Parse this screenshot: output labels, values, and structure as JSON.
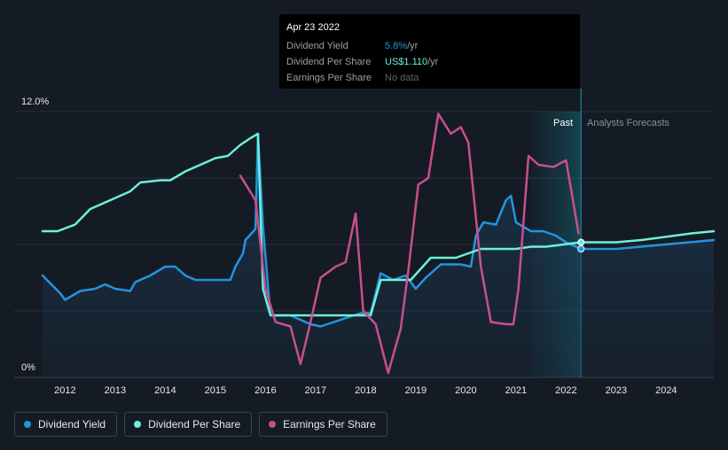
{
  "tooltip": {
    "date": "Apr 23 2022",
    "rows": [
      {
        "label": "Dividend Yield",
        "value": "5.8%",
        "unit": " /yr"
      },
      {
        "label": "Dividend Per Share",
        "value": "US$1.110",
        "unit": " /yr"
      },
      {
        "label": "Earnings Per Share",
        "value": "No data",
        "unit": ""
      }
    ]
  },
  "regions": {
    "past_label": "Past",
    "forecast_label": "Analysts Forecasts"
  },
  "legend": [
    {
      "label": "Dividend Yield",
      "color": "#2394df"
    },
    {
      "label": "Dividend Per Share",
      "color": "#6cf1d9"
    },
    {
      "label": "Earnings Per Share",
      "color": "#c94f8d"
    }
  ],
  "chart_data": {
    "type": "line",
    "title": "",
    "xlabel": "",
    "ylabel": "",
    "xlim": [
      2011.55,
      2024.95
    ],
    "ylim": [
      0,
      12
    ],
    "y_ticks": [
      {
        "value": 12,
        "label": "12.0%"
      },
      {
        "value": 0,
        "label": "0%"
      }
    ],
    "x_ticks": [
      2012,
      2013,
      2014,
      2015,
      2016,
      2017,
      2018,
      2019,
      2020,
      2021,
      2022,
      2023,
      2024
    ],
    "past_forecast_boundary": 2022.3,
    "highlight_start": 2021.3,
    "series": [
      {
        "name": "Dividend Yield",
        "color": "#2394df",
        "area": true,
        "points": [
          [
            2011.55,
            4.6
          ],
          [
            2011.9,
            3.8
          ],
          [
            2012.0,
            3.5
          ],
          [
            2012.3,
            3.9
          ],
          [
            2012.6,
            4.0
          ],
          [
            2012.8,
            4.2
          ],
          [
            2013.0,
            4.0
          ],
          [
            2013.3,
            3.9
          ],
          [
            2013.4,
            4.3
          ],
          [
            2013.7,
            4.6
          ],
          [
            2014.0,
            5.0
          ],
          [
            2014.2,
            5.0
          ],
          [
            2014.4,
            4.6
          ],
          [
            2014.6,
            4.4
          ],
          [
            2015.0,
            4.4
          ],
          [
            2015.3,
            4.4
          ],
          [
            2015.4,
            5.0
          ],
          [
            2015.55,
            5.6
          ],
          [
            2015.6,
            6.2
          ],
          [
            2015.8,
            6.7
          ],
          [
            2015.85,
            11.0
          ],
          [
            2015.95,
            6.8
          ],
          [
            2016.1,
            2.8
          ],
          [
            2016.5,
            2.8
          ],
          [
            2016.9,
            2.4
          ],
          [
            2017.1,
            2.3
          ],
          [
            2017.5,
            2.6
          ],
          [
            2017.9,
            2.9
          ],
          [
            2018.1,
            2.9
          ],
          [
            2018.3,
            4.7
          ],
          [
            2018.55,
            4.4
          ],
          [
            2018.8,
            4.6
          ],
          [
            2019.0,
            4.0
          ],
          [
            2019.2,
            4.5
          ],
          [
            2019.5,
            5.1
          ],
          [
            2019.9,
            5.1
          ],
          [
            2020.1,
            5.0
          ],
          [
            2020.2,
            6.4
          ],
          [
            2020.35,
            7.0
          ],
          [
            2020.6,
            6.9
          ],
          [
            2020.8,
            8.0
          ],
          [
            2020.9,
            8.2
          ],
          [
            2021.0,
            7.0
          ],
          [
            2021.3,
            6.6
          ],
          [
            2021.55,
            6.6
          ],
          [
            2021.8,
            6.4
          ],
          [
            2022.0,
            6.1
          ],
          [
            2022.3,
            5.8
          ],
          [
            2022.3,
            5.8
          ],
          [
            2023.0,
            5.8
          ],
          [
            2024.95,
            6.2
          ]
        ]
      },
      {
        "name": "Dividend Per Share",
        "color": "#6cf1d9",
        "area": false,
        "points": [
          [
            2011.55,
            6.6
          ],
          [
            2011.85,
            6.6
          ],
          [
            2012.2,
            6.9
          ],
          [
            2012.5,
            7.6
          ],
          [
            2012.9,
            8.0
          ],
          [
            2013.3,
            8.4
          ],
          [
            2013.5,
            8.8
          ],
          [
            2013.9,
            8.9
          ],
          [
            2014.1,
            8.9
          ],
          [
            2014.4,
            9.3
          ],
          [
            2014.7,
            9.6
          ],
          [
            2015.0,
            9.9
          ],
          [
            2015.25,
            10.0
          ],
          [
            2015.5,
            10.5
          ],
          [
            2015.7,
            10.8
          ],
          [
            2015.85,
            11.0
          ],
          [
            2015.95,
            4.0
          ],
          [
            2016.1,
            2.8
          ],
          [
            2016.5,
            2.8
          ],
          [
            2017.0,
            2.8
          ],
          [
            2017.5,
            2.8
          ],
          [
            2018.1,
            2.8
          ],
          [
            2018.3,
            4.4
          ],
          [
            2018.8,
            4.4
          ],
          [
            2018.9,
            4.4
          ],
          [
            2019.3,
            5.4
          ],
          [
            2019.8,
            5.4
          ],
          [
            2020.3,
            5.8
          ],
          [
            2020.6,
            5.8
          ],
          [
            2021.0,
            5.8
          ],
          [
            2021.3,
            5.9
          ],
          [
            2021.6,
            5.9
          ],
          [
            2022.3,
            6.1
          ],
          [
            2023.0,
            6.1
          ],
          [
            2023.5,
            6.2
          ],
          [
            2024.5,
            6.5
          ],
          [
            2024.95,
            6.6
          ]
        ]
      },
      {
        "name": "Earnings Per Share",
        "color": "#c94f8d",
        "area": false,
        "points": [
          [
            2015.5,
            9.1
          ],
          [
            2015.8,
            8.0
          ],
          [
            2016.0,
            4.0
          ],
          [
            2016.2,
            2.5
          ],
          [
            2016.5,
            2.3
          ],
          [
            2016.7,
            0.6
          ],
          [
            2016.9,
            2.5
          ],
          [
            2017.1,
            4.5
          ],
          [
            2017.4,
            5.0
          ],
          [
            2017.6,
            5.2
          ],
          [
            2017.8,
            7.4
          ],
          [
            2017.95,
            3.0
          ],
          [
            2018.2,
            2.4
          ],
          [
            2018.45,
            0.2
          ],
          [
            2018.7,
            2.2
          ],
          [
            2018.85,
            4.8
          ],
          [
            2019.05,
            8.7
          ],
          [
            2019.25,
            9.0
          ],
          [
            2019.45,
            11.9
          ],
          [
            2019.7,
            11.0
          ],
          [
            2019.9,
            11.3
          ],
          [
            2020.05,
            10.6
          ],
          [
            2020.3,
            5.0
          ],
          [
            2020.5,
            2.5
          ],
          [
            2020.8,
            2.4
          ],
          [
            2020.95,
            2.4
          ],
          [
            2021.05,
            4.0
          ],
          [
            2021.25,
            10.0
          ],
          [
            2021.45,
            9.6
          ],
          [
            2021.75,
            9.5
          ],
          [
            2022.0,
            9.8
          ],
          [
            2022.1,
            8.5
          ],
          [
            2022.25,
            6.5
          ]
        ]
      }
    ],
    "markers": [
      {
        "series": "Dividend Yield",
        "x": 2022.3,
        "y": 5.8
      },
      {
        "series": "Dividend Per Share",
        "x": 2022.3,
        "y": 6.1
      }
    ]
  }
}
